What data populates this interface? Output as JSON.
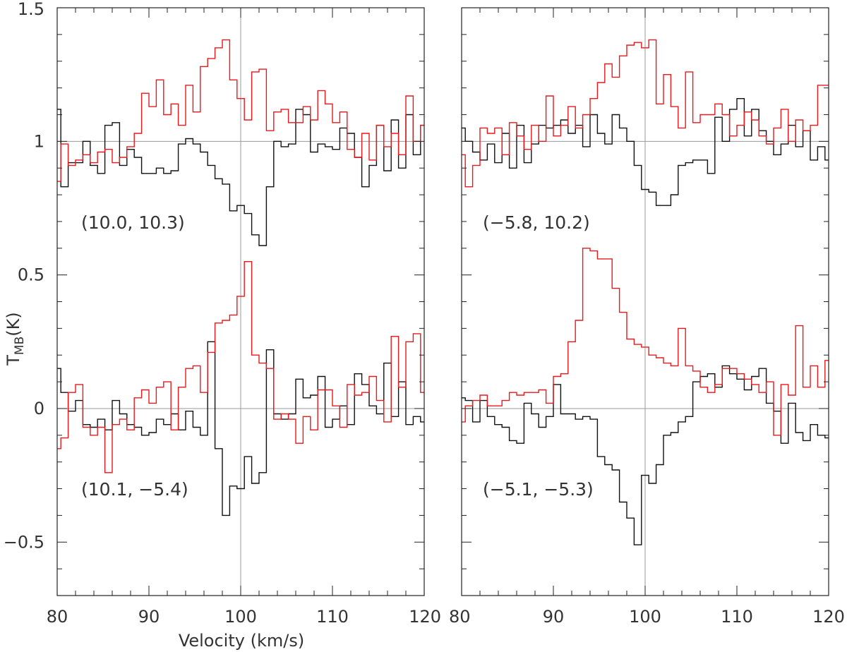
{
  "chart_data": {
    "type": "line",
    "style": "step histogram spectra",
    "xlabel": "Velocity (km/s)",
    "ylabel_main": "T",
    "ylabel_sub": "MB",
    "ylabel_unit": "(K)",
    "xlim": [
      80,
      120
    ],
    "ylim": [
      -0.7,
      1.5
    ],
    "x_ticks": [
      80,
      90,
      100,
      110,
      120
    ],
    "x_tick_labels": [
      "80",
      "90",
      "100",
      "110",
      "120"
    ],
    "y_ticks": [
      -0.5,
      0,
      0.5,
      1,
      1.5
    ],
    "y_tick_labels": [
      "−0.5",
      "0",
      "0.5",
      "1",
      "1.5"
    ],
    "reference_lines": {
      "vertical_x": 100,
      "horizontal_y": [
        0,
        1
      ]
    },
    "colors": {
      "black_series": "#111111",
      "red_series": "#e8191c",
      "reference": "#9a9a9a"
    },
    "x": [
      80,
      80.8,
      81.6,
      82.4,
      83.2,
      84,
      84.8,
      85.6,
      86.4,
      87.2,
      88,
      88.8,
      89.6,
      90.4,
      91.2,
      92,
      92.8,
      93.6,
      94.4,
      95.2,
      96,
      96.8,
      97.6,
      98.4,
      99.2,
      100,
      100.8,
      101.6,
      102.4,
      103.2,
      104,
      104.8,
      105.6,
      106.4,
      107.2,
      108,
      108.8,
      109.6,
      110.4,
      111.2,
      112,
      112.8,
      113.6,
      114.4,
      115.2,
      116,
      116.8,
      117.6,
      118.4,
      119.2,
      120
    ],
    "panels": [
      {
        "column": "left",
        "offsets": [
          {
            "label": "(10.0, 10.3)",
            "baseline": 1,
            "series": [
              {
                "color": "black",
                "values": [
                  1.12,
                  0.83,
                  0.92,
                  0.92,
                  1.0,
                  0.91,
                  0.88,
                  1.06,
                  1.07,
                  0.91,
                  0.97,
                  0.94,
                  0.88,
                  0.88,
                  0.9,
                  0.88,
                  0.89,
                  0.99,
                  1.01,
                  0.99,
                  0.96,
                  0.91,
                  0.86,
                  0.84,
                  0.74,
                  0.76,
                  0.73,
                  0.65,
                  0.61,
                  0.83,
                  1.0,
                  0.98,
                  0.99,
                  1.12,
                  1.1,
                  0.96,
                  0.99,
                  0.98,
                  0.97,
                  1.05,
                  1.03,
                  0.94,
                  0.83,
                  0.91,
                  1.06,
                  0.89,
                  1.08,
                  0.9,
                  1.1,
                  0.95,
                  1.06
                ]
              },
              {
                "color": "red",
                "values": [
                  0.85,
                  0.99,
                  0.91,
                  0.93,
                  0.95,
                  0.92,
                  0.96,
                  0.97,
                  0.92,
                  0.94,
                  0.98,
                  1.03,
                  1.18,
                  1.13,
                  1.23,
                  1.1,
                  1.14,
                  1.06,
                  1.21,
                  1.11,
                  1.28,
                  1.31,
                  1.35,
                  1.38,
                  1.23,
                  1.16,
                  1.08,
                  1.26,
                  1.27,
                  1.04,
                  1.11,
                  1.12,
                  1.07,
                  1.07,
                  1.13,
                  1.08,
                  1.19,
                  1.14,
                  1.07,
                  1.11,
                  0.97,
                  0.94,
                  1.03,
                  0.93,
                  1.06,
                  0.98,
                  1.03,
                  0.95,
                  1.17,
                  1.0,
                  1.06
                ]
              }
            ]
          },
          {
            "label": "(10.1, −5.4)",
            "baseline": 0,
            "series": [
              {
                "color": "black",
                "values": [
                  0.15,
                  0.06,
                  -0.01,
                  0.03,
                  -0.06,
                  -0.07,
                  -0.04,
                  -0.08,
                  0.03,
                  -0.02,
                  -0.06,
                  -0.07,
                  -0.1,
                  -0.09,
                  -0.04,
                  -0.06,
                  -0.02,
                  -0.08,
                  -0.01,
                  -0.07,
                  -0.1,
                  0.25,
                  -0.15,
                  -0.4,
                  -0.29,
                  -0.3,
                  -0.18,
                  -0.28,
                  -0.24,
                  0.22,
                  -0.02,
                  -0.04,
                  -0.02,
                  0.11,
                  0.04,
                  0.05,
                  0.12,
                  -0.07,
                  -0.04,
                  0.01,
                  -0.06,
                  0.13,
                  0.09,
                  0.01,
                  -0.02,
                  0.17,
                  -0.03,
                  0.1,
                  -0.06,
                  -0.03,
                  -0.05
                ]
              },
              {
                "color": "red",
                "values": [
                  -0.15,
                  -0.11,
                  0.06,
                  0.09,
                  -0.07,
                  -0.1,
                  -0.07,
                  -0.24,
                  -0.06,
                  -0.04,
                  -0.08,
                  0.04,
                  0.07,
                  0.02,
                  0.08,
                  0.1,
                  -0.08,
                  0.08,
                  0.15,
                  0.16,
                  0.06,
                  0.21,
                  0.32,
                  0.33,
                  0.35,
                  0.42,
                  0.55,
                  0.2,
                  0.17,
                  0.15,
                  -0.04,
                  -0.02,
                  -0.04,
                  -0.13,
                  -0.03,
                  -0.08,
                  0.07,
                  0.07,
                  0.01,
                  -0.07,
                  0.09,
                  0.05,
                  0.06,
                  0.12,
                  0.03,
                  -0.05,
                  0.27,
                  0.08,
                  0.25,
                  0.28,
                  0.06
                ]
              }
            ]
          }
        ]
      },
      {
        "column": "right",
        "offsets": [
          {
            "label": "(−5.8, 10.2)",
            "baseline": 1,
            "series": [
              {
                "color": "black",
                "values": [
                  1.05,
                  1.0,
                  0.96,
                  0.93,
                  0.99,
                  0.92,
                  1.03,
                  0.9,
                  1.06,
                  0.92,
                  0.99,
                  1.06,
                  1.05,
                  1.06,
                  1.08,
                  1.03,
                  1.06,
                  0.98,
                  1.1,
                  1.03,
                  0.99,
                  1.1,
                  1.05,
                  1.0,
                  0.91,
                  0.82,
                  0.81,
                  0.76,
                  0.76,
                  0.8,
                  0.91,
                  0.92,
                  0.93,
                  0.93,
                  0.88,
                  1.09,
                  1.0,
                  1.12,
                  1.16,
                  1.02,
                  1.12,
                  1.04,
                  1.0,
                  0.95,
                  0.99,
                  1.06,
                  0.98,
                  1.04,
                  0.93,
                  0.98,
                  0.93
                ]
              },
              {
                "color": "red",
                "values": [
                  0.95,
                  0.83,
                  0.91,
                  1.05,
                  1.03,
                  1.05,
                  0.95,
                  1.07,
                  1.02,
                  0.97,
                  1.06,
                  1.0,
                  1.17,
                  1.02,
                  1.06,
                  1.13,
                  1.05,
                  1.1,
                  1.16,
                  1.22,
                  1.29,
                  1.24,
                  1.32,
                  1.36,
                  1.37,
                  1.35,
                  1.38,
                  1.14,
                  1.25,
                  1.13,
                  1.05,
                  1.26,
                  1.07,
                  1.1,
                  1.1,
                  1.14,
                  1.1,
                  1.02,
                  1.06,
                  1.11,
                  1.08,
                  1.02,
                  0.99,
                  1.05,
                  1.12,
                  1.0,
                  1.08,
                  1.04,
                  1.06,
                  1.21,
                  1.21
                ]
              }
            ]
          },
          {
            "label": "(−5.1, −5.3)",
            "baseline": 0,
            "series": [
              {
                "color": "black",
                "values": [
                  0.04,
                  0.03,
                  -0.05,
                  0.03,
                  -0.03,
                  -0.06,
                  -0.07,
                  -0.12,
                  -0.13,
                  0.02,
                  -0.02,
                  -0.07,
                  -0.03,
                  0.09,
                  -0.02,
                  -0.02,
                  -0.04,
                  -0.03,
                  -0.04,
                  -0.18,
                  -0.21,
                  -0.23,
                  -0.35,
                  -0.41,
                  -0.51,
                  -0.25,
                  -0.28,
                  -0.21,
                  -0.1,
                  -0.09,
                  -0.05,
                  -0.03,
                  0.1,
                  0.12,
                  0.13,
                  0.08,
                  0.16,
                  0.13,
                  0.11,
                  0.07,
                  0.12,
                  0.15,
                  0.02,
                  -0.01,
                  -0.13,
                  0.02,
                  -0.09,
                  -0.12,
                  -0.06,
                  -0.1,
                  -0.11
                ]
              },
              {
                "color": "red",
                "values": [
                  -0.05,
                  0.01,
                  0.03,
                  0.05,
                  0.01,
                  0.01,
                  0.03,
                  0.06,
                  0.05,
                  0.06,
                  0.06,
                  0.07,
                  0.02,
                  0.12,
                  0.13,
                  0.25,
                  0.33,
                  0.6,
                  0.59,
                  0.56,
                  0.56,
                  0.45,
                  0.36,
                  0.26,
                  0.24,
                  0.23,
                  0.2,
                  0.19,
                  0.17,
                  0.16,
                  0.3,
                  0.16,
                  0.14,
                  0.08,
                  0.06,
                  0.09,
                  0.15,
                  0.15,
                  0.13,
                  0.11,
                  0.09,
                  0.06,
                  0.1,
                  -0.1,
                  0.09,
                  0.05,
                  0.31,
                  0.08,
                  0.16,
                  0.08,
                  0.18
                ]
              }
            ]
          }
        ]
      }
    ]
  }
}
